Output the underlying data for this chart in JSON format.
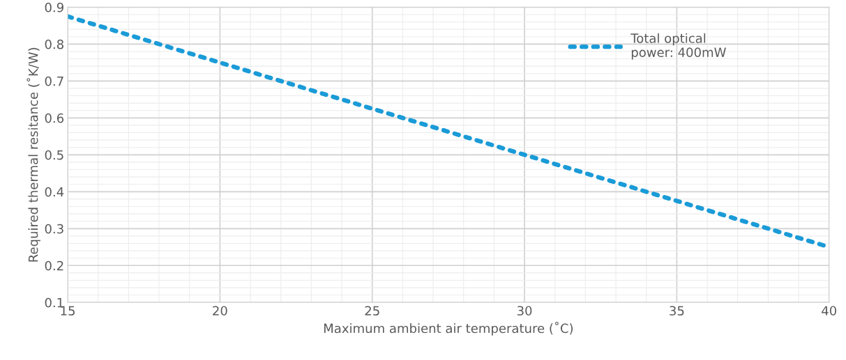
{
  "chart_data": {
    "type": "line",
    "xlabel": "Maximum ambient air temperature (˚C)",
    "ylabel": "Required thermal resitance (˚K/W)",
    "x": [
      15,
      20,
      25,
      30,
      35,
      40
    ],
    "series": [
      {
        "name": "Total optical\npower: 400mW",
        "color": "#1a9bd7",
        "values": [
          0.875,
          0.75,
          0.625,
          0.5,
          0.375,
          0.25
        ]
      }
    ],
    "xlim": [
      15,
      40
    ],
    "xticks": [
      15,
      20,
      25,
      30,
      35,
      40
    ],
    "ylim": [
      0.1,
      0.9
    ],
    "yticks": [
      0.1,
      0.2,
      0.3,
      0.4,
      0.5,
      0.6,
      0.7,
      0.8,
      0.9
    ],
    "grid": true,
    "legend": "top right",
    "line_style": "dotted",
    "marker": "none"
  }
}
